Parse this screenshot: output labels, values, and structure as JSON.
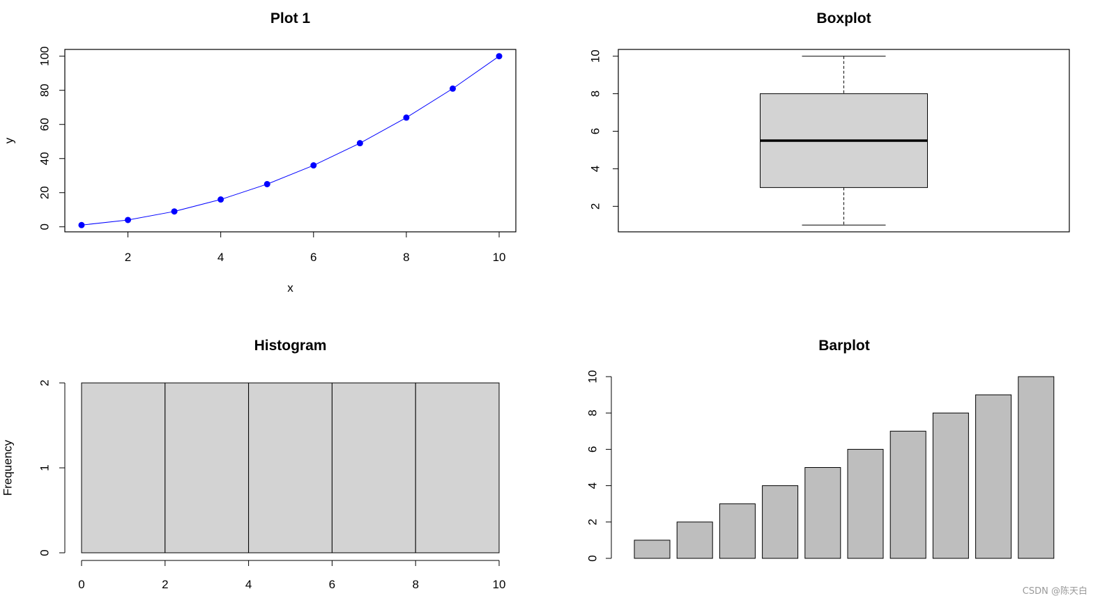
{
  "watermark": "CSDN @陈天白",
  "colors": {
    "point": "#0000ff",
    "line": "#0000ff",
    "box_fill": "#d3d3d3",
    "hist_fill": "#d3d3d3",
    "bar_fill": "#bebebe",
    "axis": "#000000"
  },
  "chart_data": [
    {
      "id": "plot1",
      "type": "line",
      "title": "Plot 1",
      "xlabel": "x",
      "ylabel": "y",
      "x": [
        1,
        2,
        3,
        4,
        5,
        6,
        7,
        8,
        9,
        10
      ],
      "y": [
        1,
        4,
        9,
        16,
        25,
        36,
        49,
        64,
        81,
        100
      ],
      "xlim": [
        0.64,
        10.36
      ],
      "ylim": [
        -2.96,
        103.96
      ],
      "xticks": [
        2,
        4,
        6,
        8,
        10
      ],
      "yticks": [
        0,
        20,
        40,
        60,
        80,
        100
      ],
      "markers": true,
      "grid": false
    },
    {
      "id": "boxplot",
      "type": "box",
      "title": "Boxplot",
      "stats": {
        "min": 1,
        "q1": 3,
        "median": 5.5,
        "q3": 8,
        "max": 10
      },
      "ylim": [
        0.64,
        10.36
      ],
      "yticks": [
        2,
        4,
        6,
        8,
        10
      ],
      "grid": false
    },
    {
      "id": "histogram",
      "type": "bar",
      "title": "Histogram",
      "xlabel": "",
      "ylabel": "Frequency",
      "bins": [
        [
          0,
          2
        ],
        [
          2,
          4
        ],
        [
          4,
          6
        ],
        [
          6,
          8
        ],
        [
          8,
          10
        ]
      ],
      "values": [
        2,
        2,
        2,
        2,
        2
      ],
      "xlim": [
        0,
        10
      ],
      "ylim": [
        0,
        2
      ],
      "xticks": [
        0,
        2,
        4,
        6,
        8,
        10
      ],
      "yticks": [
        0,
        1,
        2
      ],
      "grid": false
    },
    {
      "id": "barplot",
      "type": "bar",
      "title": "Barplot",
      "values": [
        1,
        2,
        3,
        4,
        5,
        6,
        7,
        8,
        9,
        10
      ],
      "ylim": [
        0,
        10
      ],
      "yticks": [
        0,
        2,
        4,
        6,
        8,
        10
      ],
      "grid": false
    }
  ]
}
